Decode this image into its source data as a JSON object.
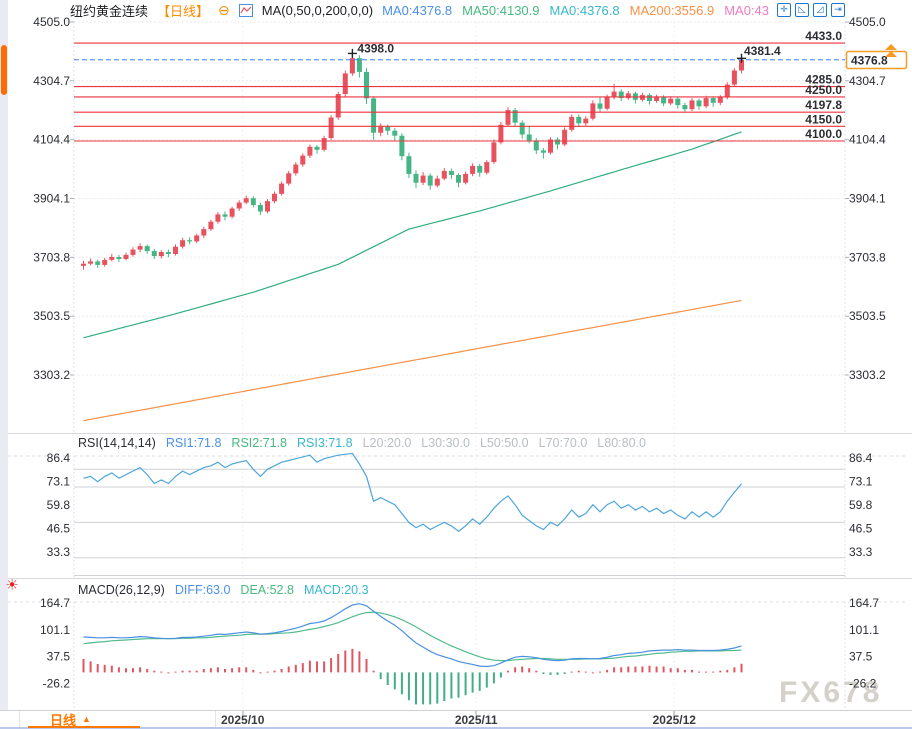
{
  "window": {
    "watermark": "FX678"
  },
  "header": {
    "title": "纽约黄金连续",
    "period_tag": "【日线】",
    "indicator_label": "MA(0,50,0,200,0,0)",
    "ma_values": [
      {
        "text": "MA0:4376.8",
        "color": "#4a90e8"
      },
      {
        "text": "MA50:4130.9",
        "color": "#45b97e"
      },
      {
        "text": "MA0:4376.8",
        "color": "#35b8cc"
      },
      {
        "text": "MA200:3556.9",
        "color": "#f99145"
      },
      {
        "text": "MA0:43",
        "color": "#ef7bc3"
      }
    ],
    "toolbar_icons": [
      {
        "name": "pan-move-icon",
        "glyph": "✛"
      },
      {
        "name": "scale-axis-left-icon",
        "glyph": "◺"
      },
      {
        "name": "scale-axis-right-icon",
        "glyph": "◿"
      },
      {
        "name": "go-to-latest-icon",
        "glyph": "⇥"
      }
    ]
  },
  "icons": {
    "collapse": "⊖",
    "live": "☀"
  },
  "rsi_header": {
    "title": "RSI(14,14,14)",
    "items": [
      {
        "text": "RSI1:71.8",
        "color": "#4a90e8"
      },
      {
        "text": "RSI2:71.8",
        "color": "#45b97e"
      },
      {
        "text": "RSI3:71.8",
        "color": "#35b8cc"
      },
      {
        "text": "L20:20.0",
        "color": "#b8bdc7"
      },
      {
        "text": "L30:30.0",
        "color": "#b8bdc7"
      },
      {
        "text": "L50:50.0",
        "color": "#b8bdc7"
      },
      {
        "text": "L70:70.0",
        "color": "#b8bdc7"
      },
      {
        "text": "L80:80.0",
        "color": "#b8bdc7"
      }
    ]
  },
  "macd_header": {
    "title": "MACD(26,12,9)",
    "items": [
      {
        "text": "DIFF:63.0",
        "color": "#4a90e8"
      },
      {
        "text": "DEA:52.8",
        "color": "#45b97e"
      },
      {
        "text": "MACD:20.3",
        "color": "#35b8cc"
      }
    ]
  },
  "footer": {
    "tab_label": "日线",
    "tab_arrow": "▲"
  },
  "price_box": {
    "value": "4376.8"
  },
  "colors": {
    "up": "#e8525f",
    "down": "#45b585",
    "ma50": "#2fae7d",
    "ma200": "#f5924a",
    "rsi_line": "#4ea6d9",
    "diff": "#4a90e2",
    "dea": "#52bb8c",
    "hist_pos": "#e05560",
    "hist_neg": "#3fae85",
    "line_red": "#ee333e",
    "current_blue": "#3b82e8",
    "price_box_orange": "#f59a23",
    "accent_orange": "#ff8a00"
  },
  "chart_data": {
    "type": "candlestick",
    "title": "纽约黄金连续 日线",
    "price_axis_labels": [
      "4505.0",
      "4304.7",
      "4104.4",
      "3904.1",
      "3703.8",
      "3503.5",
      "3303.2"
    ],
    "horizontal_lines": [
      "4433.0",
      "4285.0",
      "4250.0",
      "4197.8",
      "4150.0",
      "4100.0"
    ],
    "current_price": 4376.8,
    "annotations": {
      "peak": {
        "label": "4398.0",
        "index": 38
      },
      "last": {
        "label": "4381.4",
        "index": 93
      }
    },
    "x_ticks": [
      {
        "label": "2025/10",
        "i": 22.5
      },
      {
        "label": "2025/11",
        "i": 55.5
      },
      {
        "label": "2025/12",
        "i": 83.5
      }
    ],
    "candles": [
      [
        3675,
        3692,
        3662,
        3682
      ],
      [
        3682,
        3700,
        3676,
        3690
      ],
      [
        3690,
        3696,
        3668,
        3678
      ],
      [
        3678,
        3702,
        3672,
        3695
      ],
      [
        3695,
        3716,
        3690,
        3705
      ],
      [
        3705,
        3712,
        3688,
        3698
      ],
      [
        3698,
        3720,
        3694,
        3712
      ],
      [
        3712,
        3738,
        3706,
        3730
      ],
      [
        3730,
        3752,
        3722,
        3742
      ],
      [
        3742,
        3748,
        3716,
        3725
      ],
      [
        3725,
        3732,
        3698,
        3708
      ],
      [
        3708,
        3728,
        3700,
        3722
      ],
      [
        3722,
        3730,
        3704,
        3715
      ],
      [
        3715,
        3748,
        3710,
        3740
      ],
      [
        3740,
        3770,
        3734,
        3762
      ],
      [
        3762,
        3772,
        3748,
        3758
      ],
      [
        3758,
        3784,
        3752,
        3778
      ],
      [
        3778,
        3808,
        3770,
        3800
      ],
      [
        3800,
        3832,
        3794,
        3825
      ],
      [
        3825,
        3858,
        3818,
        3850
      ],
      [
        3850,
        3860,
        3830,
        3842
      ],
      [
        3842,
        3876,
        3836,
        3870
      ],
      [
        3870,
        3898,
        3862,
        3890
      ],
      [
        3890,
        3914,
        3884,
        3905
      ],
      [
        3905,
        3912,
        3874,
        3882
      ],
      [
        3882,
        3890,
        3848,
        3860
      ],
      [
        3860,
        3902,
        3854,
        3895
      ],
      [
        3895,
        3928,
        3888,
        3920
      ],
      [
        3920,
        3962,
        3914,
        3955
      ],
      [
        3955,
        3998,
        3948,
        3990
      ],
      [
        3990,
        4028,
        3982,
        4020
      ],
      [
        4020,
        4058,
        4012,
        4050
      ],
      [
        4050,
        4088,
        4042,
        4080
      ],
      [
        4080,
        4086,
        4056,
        4070
      ],
      [
        4070,
        4118,
        4064,
        4110
      ],
      [
        4110,
        4188,
        4104,
        4180
      ],
      [
        4180,
        4268,
        4172,
        4260
      ],
      [
        4260,
        4340,
        4250,
        4330
      ],
      [
        4330,
        4398,
        4322,
        4382
      ],
      [
        4382,
        4392,
        4316,
        4335
      ],
      [
        4335,
        4348,
        4226,
        4245
      ],
      [
        4245,
        4252,
        4104,
        4128
      ],
      [
        4128,
        4160,
        4116,
        4148
      ],
      [
        4148,
        4156,
        4120,
        4135
      ],
      [
        4135,
        4144,
        4100,
        4118
      ],
      [
        4118,
        4126,
        4034,
        4048
      ],
      [
        4048,
        4060,
        3974,
        3988
      ],
      [
        3988,
        4000,
        3940,
        3958
      ],
      [
        3958,
        3994,
        3950,
        3982
      ],
      [
        3982,
        3990,
        3934,
        3948
      ],
      [
        3948,
        3982,
        3942,
        3972
      ],
      [
        3972,
        4008,
        3966,
        3998
      ],
      [
        3998,
        4006,
        3970,
        3984
      ],
      [
        3984,
        3990,
        3942,
        3958
      ],
      [
        3958,
        3996,
        3952,
        3988
      ],
      [
        3988,
        4024,
        3980,
        4015
      ],
      [
        4015,
        4022,
        3978,
        3992
      ],
      [
        3992,
        4035,
        3986,
        4028
      ],
      [
        4028,
        4105,
        4022,
        4095
      ],
      [
        4095,
        4165,
        4088,
        4155
      ],
      [
        4155,
        4215,
        4148,
        4205
      ],
      [
        4205,
        4212,
        4150,
        4162
      ],
      [
        4162,
        4170,
        4108,
        4122
      ],
      [
        4122,
        4152,
        4092,
        4102
      ],
      [
        4102,
        4110,
        4056,
        4068
      ],
      [
        4068,
        4076,
        4040,
        4060
      ],
      [
        4060,
        4112,
        4054,
        4105
      ],
      [
        4105,
        4112,
        4072,
        4088
      ],
      [
        4088,
        4146,
        4082,
        4138
      ],
      [
        4138,
        4190,
        4132,
        4182
      ],
      [
        4182,
        4190,
        4148,
        4160
      ],
      [
        4160,
        4184,
        4152,
        4176
      ],
      [
        4176,
        4238,
        4170,
        4228
      ],
      [
        4228,
        4250,
        4198,
        4210
      ],
      [
        4210,
        4258,
        4204,
        4248
      ],
      [
        4248,
        4295,
        4242,
        4268
      ],
      [
        4268,
        4276,
        4236,
        4246
      ],
      [
        4246,
        4270,
        4240,
        4262
      ],
      [
        4262,
        4268,
        4228,
        4240
      ],
      [
        4240,
        4264,
        4234,
        4256
      ],
      [
        4256,
        4262,
        4224,
        4236
      ],
      [
        4236,
        4258,
        4230,
        4250
      ],
      [
        4250,
        4256,
        4218,
        4228
      ],
      [
        4228,
        4252,
        4222,
        4244
      ],
      [
        4244,
        4250,
        4210,
        4222
      ],
      [
        4222,
        4230,
        4196,
        4208
      ],
      [
        4208,
        4246,
        4202,
        4238
      ],
      [
        4238,
        4244,
        4206,
        4218
      ],
      [
        4218,
        4254,
        4212,
        4246
      ],
      [
        4246,
        4252,
        4216,
        4230
      ],
      [
        4230,
        4256,
        4222,
        4248
      ],
      [
        4248,
        4300,
        4242,
        4292
      ],
      [
        4292,
        4348,
        4286,
        4340
      ],
      [
        4340,
        4381.4,
        4330,
        4376.8
      ]
    ],
    "ma50_waypoints": [
      [
        0,
        3430
      ],
      [
        12,
        3505
      ],
      [
        24,
        3585
      ],
      [
        36,
        3680
      ],
      [
        46,
        3800
      ],
      [
        56,
        3862
      ],
      [
        66,
        3930
      ],
      [
        76,
        4002
      ],
      [
        86,
        4072
      ],
      [
        93,
        4131
      ]
    ],
    "ma200_waypoints": [
      [
        0,
        3148
      ],
      [
        30,
        3280
      ],
      [
        60,
        3412
      ],
      [
        93,
        3557
      ]
    ],
    "rsi": {
      "values": [
        75,
        76,
        73,
        76,
        78,
        75,
        77,
        79,
        81,
        77,
        72,
        74,
        72,
        76,
        79,
        77,
        79,
        81,
        82,
        84,
        81,
        83,
        84,
        85,
        80,
        76,
        80,
        82,
        84,
        85,
        86,
        87,
        88,
        84,
        86,
        87,
        88,
        88.5,
        89,
        83,
        76,
        62,
        64,
        62,
        60,
        55,
        50,
        47,
        49,
        46,
        48,
        50,
        48,
        45,
        48,
        52,
        49,
        53,
        58,
        62,
        65,
        60,
        54,
        51,
        48,
        46,
        50,
        48,
        52,
        57,
        53,
        55,
        60,
        56,
        60,
        62,
        58,
        60,
        57,
        59,
        56,
        58,
        55,
        57,
        54,
        52,
        56,
        53,
        56,
        53,
        56,
        62,
        67,
        71.8
      ],
      "levels": [
        80,
        70,
        50,
        30,
        20
      ],
      "axis_labels": [
        "86.4",
        "73.1",
        "59.8",
        "46.5",
        "33.3"
      ]
    },
    "macd": {
      "diff": [
        84,
        83,
        82,
        82,
        83,
        82,
        82,
        83,
        85,
        84,
        82,
        81,
        80,
        81,
        83,
        83,
        84,
        86,
        88,
        91,
        90,
        92,
        94,
        96,
        94,
        91,
        92,
        94,
        97,
        101,
        105,
        110,
        116,
        118,
        122,
        130,
        140,
        151,
        160,
        163,
        158,
        145,
        133,
        122,
        112,
        99,
        84,
        70,
        60,
        50,
        42,
        37,
        32,
        26,
        22,
        19,
        15,
        14,
        16,
        22,
        30,
        36,
        38,
        37,
        35,
        31,
        29,
        28,
        29,
        32,
        33,
        33,
        32,
        33,
        36,
        40,
        42,
        45,
        46,
        48,
        51,
        52,
        53,
        53,
        54,
        53,
        53,
        52,
        52,
        52,
        53,
        55,
        58,
        63
      ],
      "dea": [
        68,
        70,
        72,
        73,
        75,
        76,
        77,
        78,
        79,
        80,
        80,
        80,
        80,
        80,
        81,
        81,
        82,
        82,
        83,
        85,
        86,
        87,
        88,
        90,
        91,
        91,
        91,
        92,
        93,
        94,
        96,
        99,
        102,
        105,
        109,
        113,
        118,
        125,
        132,
        138,
        142,
        143,
        141,
        137,
        132,
        125,
        117,
        108,
        98,
        88,
        79,
        71,
        63,
        56,
        49,
        43,
        37,
        32,
        29,
        28,
        28,
        30,
        31,
        32,
        33,
        33,
        32,
        31,
        31,
        31,
        31,
        32,
        32,
        32,
        33,
        34,
        36,
        38,
        39,
        41,
        43,
        45,
        46,
        48,
        49,
        50,
        50,
        51,
        51,
        51,
        51,
        52,
        52,
        52.8
      ],
      "axis_labels": [
        "164.7",
        "101.1",
        "37.5",
        "-26.2"
      ]
    }
  }
}
